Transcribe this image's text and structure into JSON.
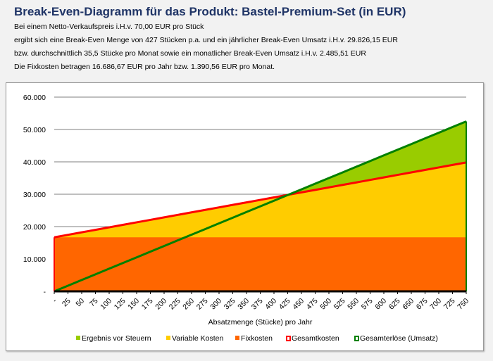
{
  "header": {
    "title": "Break-Even-Diagramm für das Produkt: Bastel-Premium-Set (in EUR)",
    "lines": [
      "Bei einem Netto-Verkaufspreis i.H.v. 70,00 EUR pro Stück",
      "ergibt sich eine Break-Even Menge von 427 Stücken p.a. und ein jährlicher Break-Even Umsatz i.H.v. 29.826,15 EUR",
      "bzw. durchschnittlich 35,5 Stücke pro Monat sowie ein monatlicher Break-Even Umsatz i.H.v. 2.485,51 EUR",
      "Die Fixkosten betragen 16.686,67 EUR pro Jahr bzw. 1.390,56 EUR pro Monat."
    ]
  },
  "chart_data": {
    "type": "area",
    "xlabel": "Absatzmenge (Stücke) pro Jahr",
    "ylabel": "",
    "ylim": [
      0,
      60000
    ],
    "yticks": [
      0,
      10000,
      20000,
      30000,
      40000,
      50000,
      60000
    ],
    "ytick_labels": [
      "-",
      "10.000",
      "20.000",
      "30.000",
      "40.000",
      "50.000",
      "60.000"
    ],
    "x": [
      0,
      25,
      50,
      75,
      100,
      125,
      150,
      175,
      200,
      225,
      250,
      275,
      300,
      325,
      350,
      375,
      400,
      425,
      450,
      475,
      500,
      525,
      550,
      575,
      600,
      625,
      650,
      675,
      700,
      725,
      750
    ],
    "xtick_labels": [
      "-",
      "25",
      "50",
      "75",
      "100",
      "125",
      "150",
      "175",
      "200",
      "225",
      "250",
      "275",
      "300",
      "325",
      "350",
      "375",
      "400",
      "425",
      "450",
      "475",
      "500",
      "525",
      "550",
      "575",
      "600",
      "625",
      "650",
      "675",
      "700",
      "725",
      "750"
    ],
    "grid": true,
    "legend": "bottom",
    "series": [
      {
        "name": "Ergebnis vor Steuern",
        "color": "#99cc00",
        "kind": "area"
      },
      {
        "name": "Variable Kosten",
        "color": "#ffcc00",
        "kind": "area",
        "values": [
          0,
          771,
          1542,
          2313,
          3084,
          3855,
          4626,
          5397,
          6168,
          6939,
          7710,
          8481,
          9252,
          10023,
          10794,
          11565,
          12336,
          13107,
          13878,
          14649,
          15420,
          16191,
          16962,
          17733,
          18504,
          19275,
          20046,
          20817,
          21588,
          22359,
          23130
        ]
      },
      {
        "name": "Fixkosten",
        "color": "#ff6600",
        "kind": "area",
        "value": 16687
      },
      {
        "name": "Gesamtkosten",
        "color": "#ff0000",
        "kind": "line",
        "values": [
          16687,
          17458,
          18229,
          19000,
          19771,
          20542,
          21313,
          22084,
          22855,
          23626,
          24397,
          25168,
          25939,
          26710,
          27481,
          28252,
          29023,
          29794,
          30565,
          31336,
          32107,
          32878,
          33649,
          34420,
          35191,
          35962,
          36733,
          37504,
          38275,
          39046,
          39817
        ]
      },
      {
        "name": "Gesamterlöse (Umsatz)",
        "color": "#008000",
        "kind": "line",
        "values": [
          0,
          1750,
          3500,
          5250,
          7000,
          8750,
          10500,
          12250,
          14000,
          15750,
          17500,
          19250,
          21000,
          22750,
          24500,
          26250,
          28000,
          29750,
          31500,
          33250,
          35000,
          36750,
          38500,
          40250,
          42000,
          43750,
          45500,
          47250,
          49000,
          50750,
          52500
        ]
      }
    ]
  }
}
